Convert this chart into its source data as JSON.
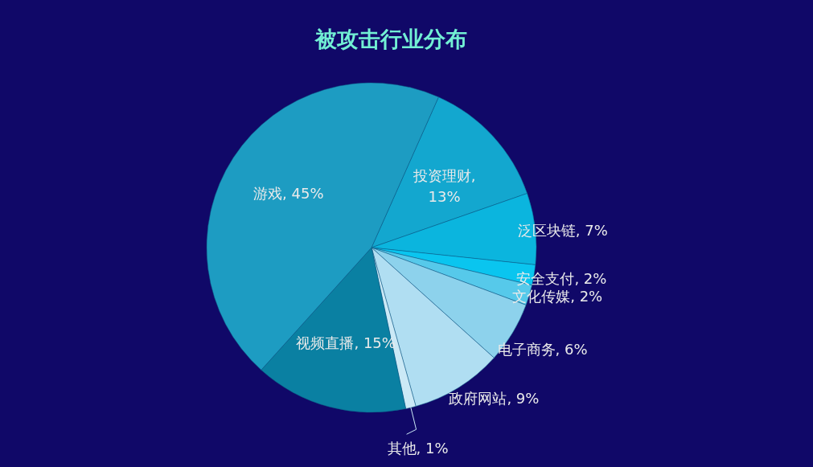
{
  "chart_data": {
    "type": "pie",
    "title": "被攻击行业分布",
    "categories": [
      "投资理财",
      "泛区块链",
      "安全支付",
      "文化传媒",
      "电子商务",
      "政府网站",
      "其他",
      "视频直播",
      "游戏"
    ],
    "values": [
      13,
      7,
      2,
      2,
      6,
      9,
      1,
      15,
      45
    ],
    "colors": [
      "#13a7cf",
      "#0bb5de",
      "#0ac5ef",
      "#56c9ea",
      "#8dd2ec",
      "#b0def2",
      "#cbe9f6",
      "#0a80a2",
      "#1d9cc2"
    ],
    "value_labels": [
      ", 13%",
      ", 7%",
      ", 2%",
      ", 2%",
      ", 6%",
      ", 9%",
      ", 1%",
      ", 15%",
      ", 45%"
    ]
  }
}
